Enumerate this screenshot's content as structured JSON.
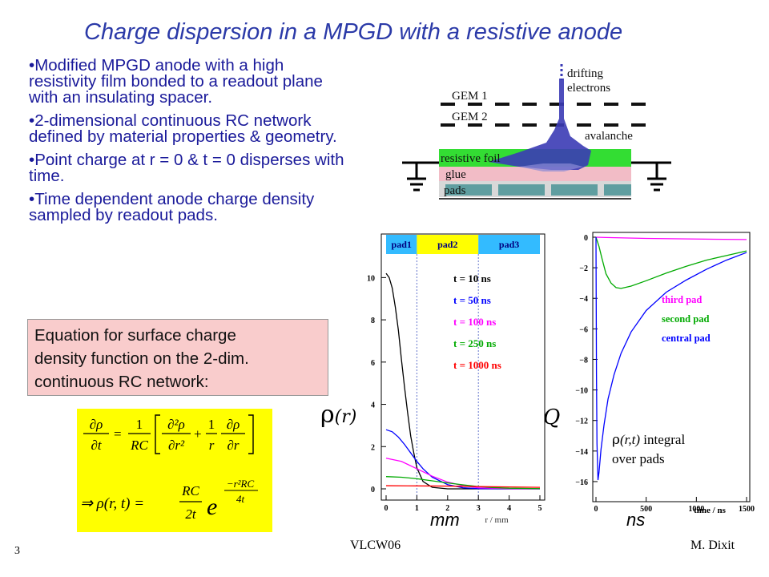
{
  "slide": {
    "title": "Charge dispersion in a MPGD with a resistive anode",
    "bullets": [
      "Modified MPGD anode with a high resistivity film bonded to a readout plane with an insulating spacer.",
      "2-dimensional continuous RC network defined by material properties & geometry.",
      "Point charge at r = 0 & t = 0 disperses with time.",
      "Time dependent anode charge density sampled by readout pads."
    ],
    "equation_box": [
      "Equation for surface charge",
      "density function on the 2-dim.",
      "continuous RC network:"
    ],
    "left_axis_symbol": "ρ",
    "left_axis_var": "(r)",
    "right_axis_symbol": "Q",
    "left_unit": "mm",
    "right_unit": "ns",
    "footer_left": "VLCW06",
    "footer_right": "M. Dixit",
    "slide_number": "3",
    "colors": {
      "title": "#2b3aa8",
      "bullets": "#1a1a9a",
      "eq_box": "#f9cccc",
      "formula_bg": "#ffff00"
    }
  },
  "diagram": {
    "labels": {
      "gem1": "GEM 1",
      "gem2": "GEM 2",
      "drifting": "drifting",
      "electrons": "electrons",
      "avalanche": "avalanche",
      "resistive": "resistive foil",
      "glue": "glue",
      "pads": "pads"
    },
    "colors": {
      "resistive": "#33dd33",
      "glue": "#f2bcc6",
      "pads": "#5f9ea0",
      "electrons": "#3b3bb5"
    }
  },
  "formulas": {
    "eq1": {
      "lhs_num": "∂ρ",
      "lhs_den": "∂t",
      "c_num": "1",
      "c_den": "RC",
      "t1_num": "∂²ρ",
      "t1_den": "∂r²",
      "t2_num": "1",
      "t2_den": "r",
      "t3_num": "∂ρ",
      "t3_den": "∂r"
    },
    "eq2": {
      "lhs": "⇒ ρ(r, t) =",
      "c_num": "RC",
      "c_den": "2t",
      "base": "e",
      "exp_num": "−r²RC",
      "exp_den": "4t"
    }
  },
  "chart_data": [
    {
      "type": "line",
      "x_tick_labels": [
        "0",
        "1",
        "2",
        "3",
        "4",
        "5"
      ],
      "y_tick_labels": [
        "0",
        "2",
        "4",
        "6",
        "8",
        "10"
      ],
      "xlim": [
        0,
        5
      ],
      "ylim": [
        0,
        11
      ],
      "xlabel": "r / mm",
      "pad_bands": [
        {
          "label": "pad1",
          "x0": 0,
          "x1": 1,
          "color": "#33bbff"
        },
        {
          "label": "pad2",
          "x0": 1,
          "x1": 3,
          "color": "#ffff00"
        },
        {
          "label": "pad3",
          "x0": 3,
          "x1": 5,
          "color": "#33bbff"
        }
      ],
      "legend_position": "right",
      "series": [
        {
          "name": "t = 10 ns",
          "color": "#000000",
          "x": [
            0,
            0.1,
            0.2,
            0.3,
            0.4,
            0.5,
            0.6,
            0.7,
            0.8,
            0.9,
            1.0,
            1.2,
            1.5,
            2.0,
            3.0,
            5.0
          ],
          "y": [
            10.2,
            10.0,
            9.5,
            8.6,
            7.5,
            6.1,
            4.8,
            3.6,
            2.5,
            1.7,
            1.0,
            0.35,
            0.07,
            0,
            0,
            0
          ]
        },
        {
          "name": "t = 50 ns",
          "color": "#0000ff",
          "x": [
            0,
            0.2,
            0.4,
            0.6,
            0.8,
            1.0,
            1.2,
            1.5,
            2.0,
            2.5,
            3.0,
            4.0,
            5.0
          ],
          "y": [
            2.8,
            2.7,
            2.45,
            2.1,
            1.7,
            1.3,
            0.95,
            0.55,
            0.2,
            0.05,
            0.01,
            0,
            0
          ]
        },
        {
          "name": "t = 100 ns",
          "color": "#ff00ff",
          "x": [
            0,
            0.5,
            1.0,
            1.5,
            2.0,
            2.5,
            3.0,
            4.0,
            5.0
          ],
          "y": [
            1.45,
            1.3,
            0.95,
            0.6,
            0.32,
            0.15,
            0.05,
            0.01,
            0
          ]
        },
        {
          "name": "t = 250 ns",
          "color": "#00aa00",
          "x": [
            0,
            0.5,
            1.0,
            1.5,
            2.0,
            2.5,
            3.0,
            3.5,
            4.0,
            5.0
          ],
          "y": [
            0.58,
            0.55,
            0.48,
            0.38,
            0.28,
            0.19,
            0.11,
            0.06,
            0.03,
            0.01
          ]
        },
        {
          "name": "t = 1000 ns",
          "color": "#ff0000",
          "x": [
            0,
            1.0,
            2.0,
            3.0,
            4.0,
            5.0
          ],
          "y": [
            0.15,
            0.14,
            0.13,
            0.11,
            0.09,
            0.07
          ]
        }
      ]
    },
    {
      "type": "line",
      "x_tick_labels": [
        "0",
        "500",
        "1000",
        "1500"
      ],
      "y_tick_labels": [
        "0",
        "−2",
        "−4",
        "−6",
        "−8",
        "−10",
        "−12",
        "−14",
        "−16"
      ],
      "xlim": [
        0,
        1500
      ],
      "ylim": [
        -17,
        0
      ],
      "xlabel": "time / ns",
      "annotation_symbol": "ρ",
      "annotation_var": "(r,t)",
      "annotation_text": " integral",
      "annotation_line2": "over pads",
      "legend_position": "right",
      "series": [
        {
          "name": "third pad",
          "color": "#ff00ff",
          "x": [
            0,
            100,
            500,
            1000,
            1500
          ],
          "y": [
            0,
            -0.02,
            -0.08,
            -0.12,
            -0.15
          ]
        },
        {
          "name": "second pad",
          "color": "#00aa00",
          "x": [
            0,
            30,
            60,
            100,
            150,
            200,
            250,
            350,
            500,
            700,
            900,
            1100,
            1300,
            1500
          ],
          "y": [
            0,
            -0.6,
            -1.4,
            -2.4,
            -3.0,
            -3.3,
            -3.35,
            -3.2,
            -2.85,
            -2.35,
            -1.9,
            -1.5,
            -1.2,
            -0.9
          ]
        },
        {
          "name": "central pad",
          "color": "#0000ff",
          "x": [
            0,
            5,
            10,
            20,
            30,
            50,
            80,
            120,
            180,
            250,
            350,
            500,
            700,
            900,
            1100,
            1300,
            1500
          ],
          "y": [
            0,
            -9,
            -13.5,
            -15.9,
            -15.4,
            -13.9,
            -12.3,
            -10.6,
            -9.0,
            -7.6,
            -6.2,
            -4.8,
            -3.6,
            -2.8,
            -2.1,
            -1.5,
            -1.0
          ]
        }
      ]
    }
  ]
}
